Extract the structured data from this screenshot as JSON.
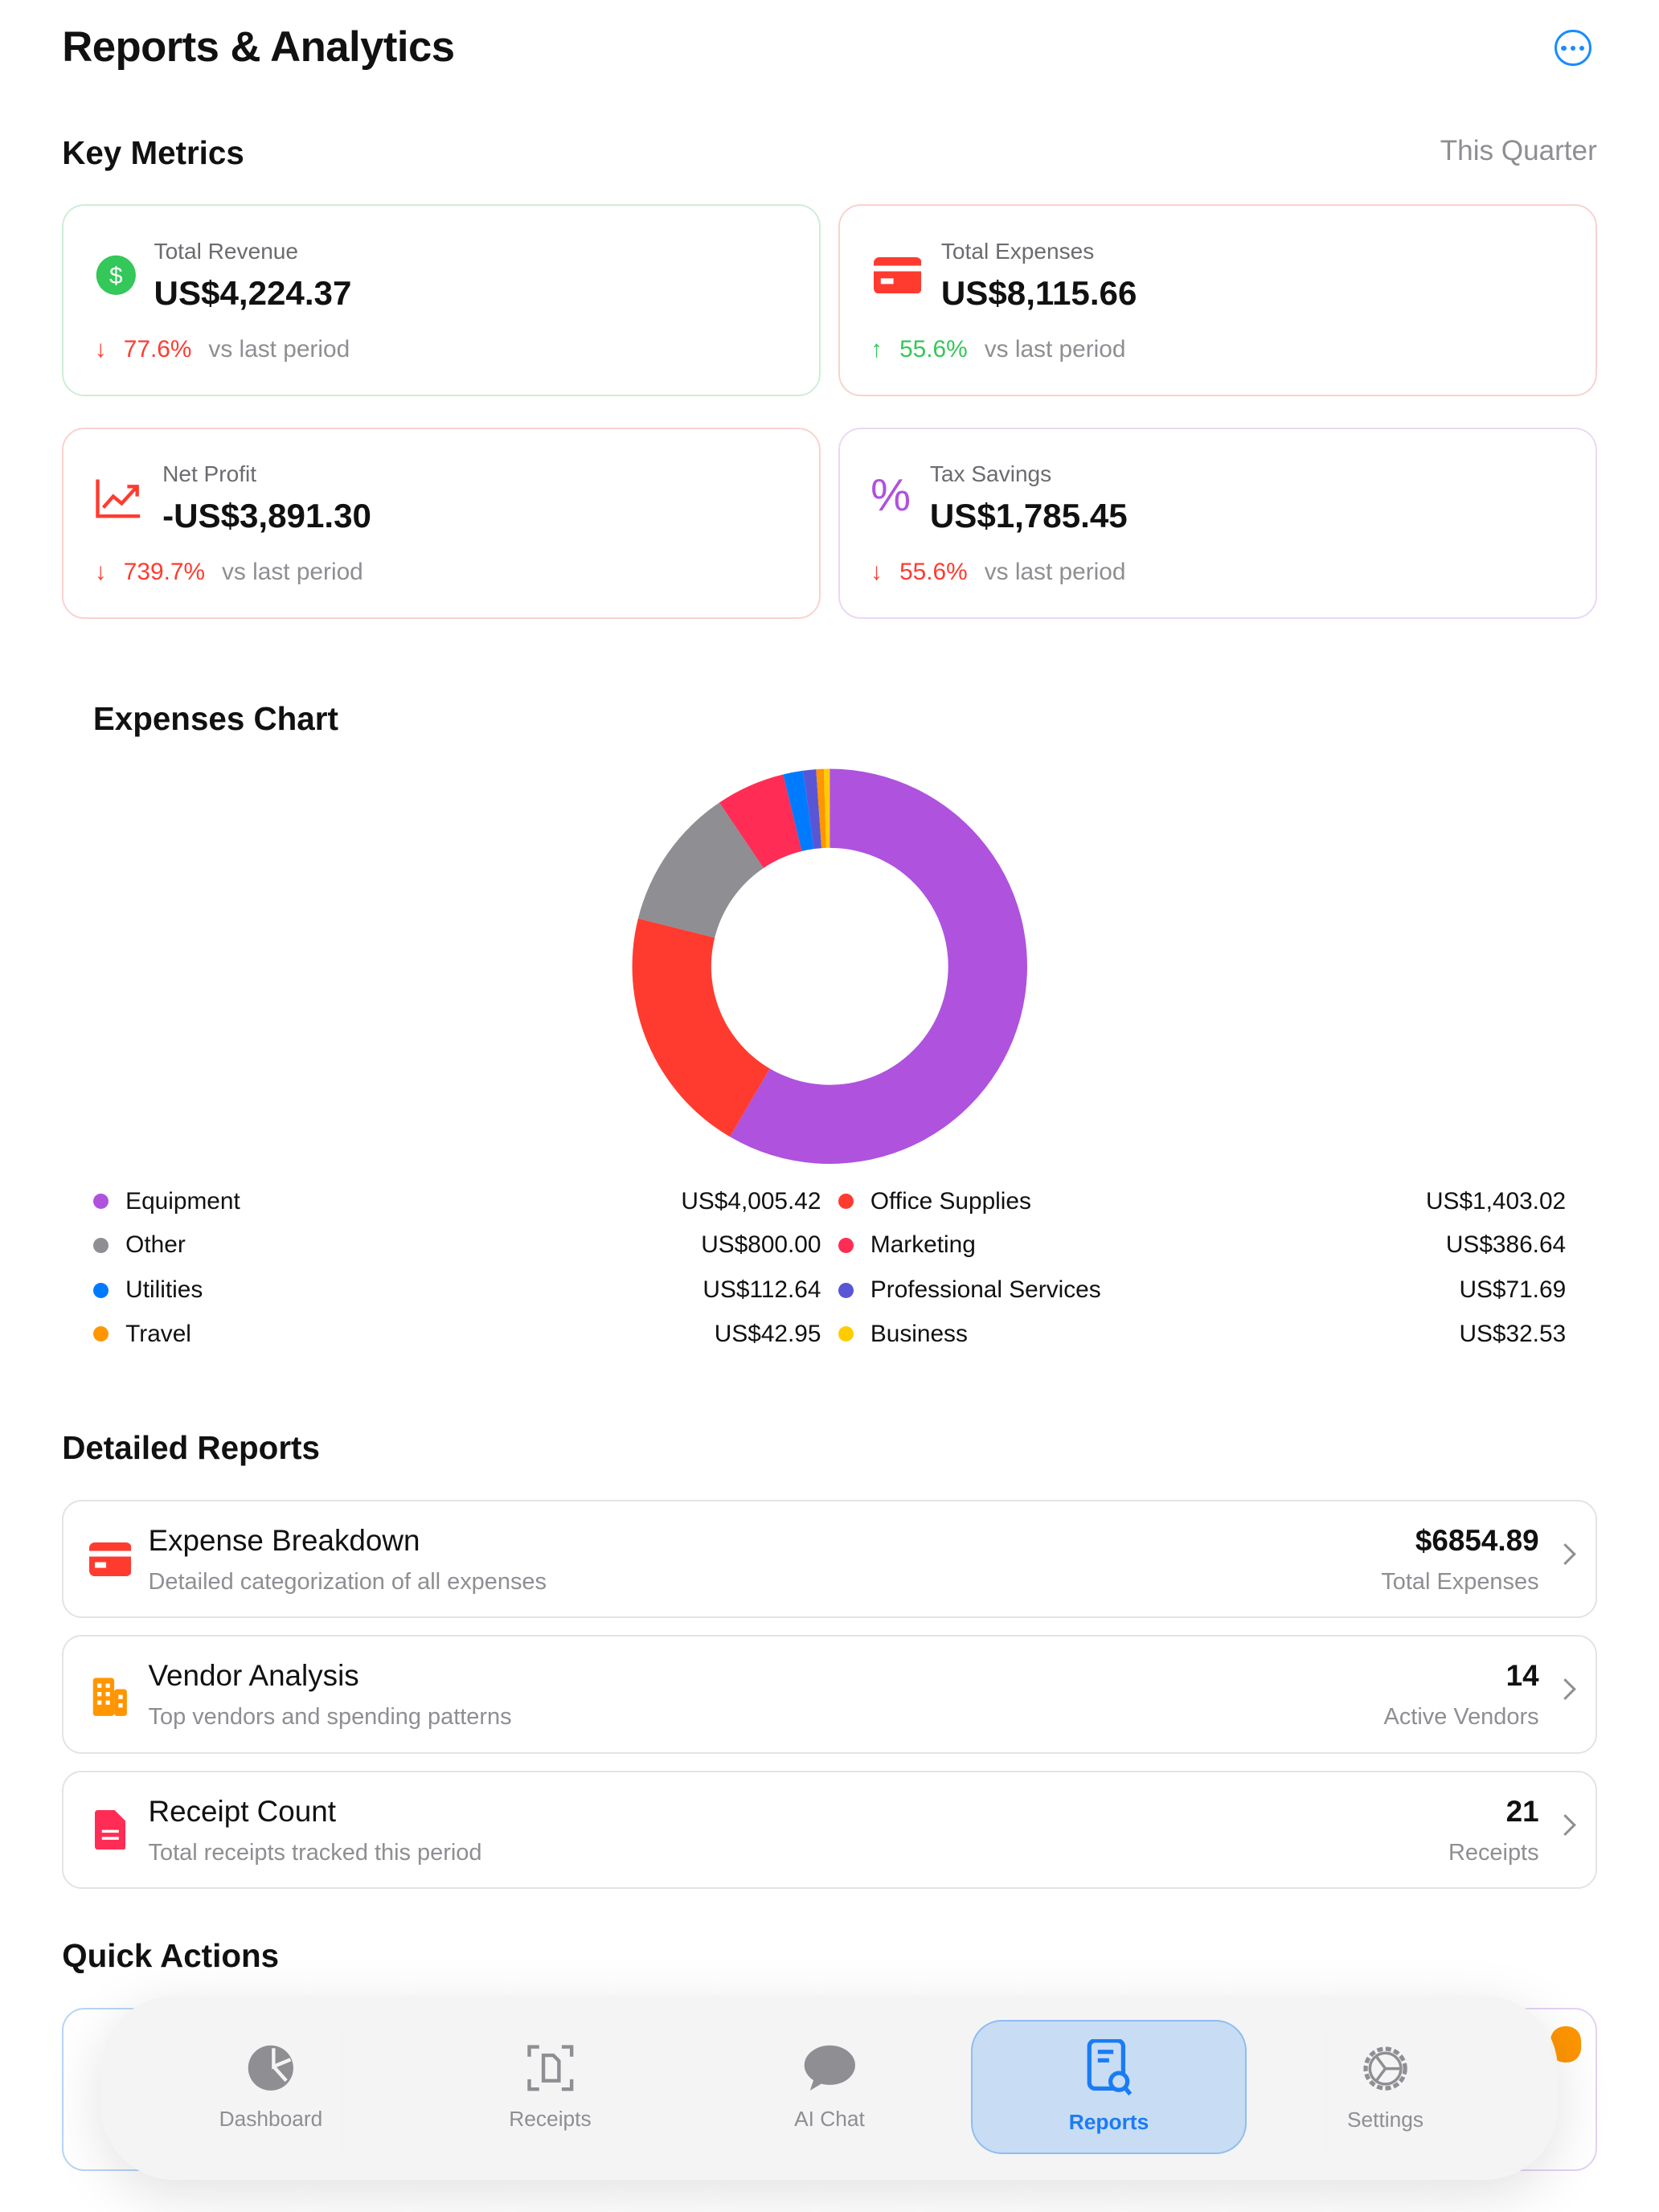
{
  "header": {
    "title": "Reports & Analytics",
    "more_icon": "ellipsis-circle-icon"
  },
  "metrics": {
    "title": "Key Metrics",
    "period": "This Quarter",
    "cards": [
      {
        "label": "Total Revenue",
        "value": "US$4,224.37",
        "change": "77.6%",
        "direction": "down",
        "vs": "vs last period",
        "icon": "dollar-circle-icon",
        "border": "#cdeed6"
      },
      {
        "label": "Total Expenses",
        "value": "US$8,115.66",
        "change": "55.6%",
        "direction": "up",
        "vs": "vs last period",
        "icon": "credit-card-icon",
        "border": "#f9d2d0"
      },
      {
        "label": "Net Profit",
        "value": "-US$3,891.30",
        "change": "739.7%",
        "direction": "down",
        "vs": "vs last period",
        "icon": "chart-line-icon",
        "border": "#f9d2d0"
      },
      {
        "label": "Tax Savings",
        "value": "US$1,785.45",
        "change": "55.6%",
        "direction": "down",
        "vs": "vs last period",
        "icon": "percent-icon",
        "border": "#ead8f5"
      }
    ]
  },
  "chart_data": {
    "type": "pie",
    "donut": true,
    "title": "Expenses Chart",
    "categories": [
      "Equipment",
      "Office Supplies",
      "Other",
      "Marketing",
      "Utilities",
      "Professional Services",
      "Travel",
      "Business"
    ],
    "values": [
      4005.42,
      1403.02,
      800.0,
      386.64,
      112.64,
      71.69,
      42.95,
      32.53
    ],
    "labels": [
      "US$4,005.42",
      "US$1,403.02",
      "US$800.00",
      "US$386.64",
      "US$112.64",
      "US$71.69",
      "US$42.95",
      "US$32.53"
    ],
    "colors": [
      "#af52de",
      "#ff3b30",
      "#8e8e93",
      "#ff2d55",
      "#007aff",
      "#5856d6",
      "#ff9500",
      "#ffcc00"
    ],
    "legend": "bottom"
  },
  "reports": {
    "title": "Detailed Reports",
    "items": [
      {
        "title": "Expense Breakdown",
        "subtitle": "Detailed categorization of all expenses",
        "value": "$6854.89",
        "value_label": "Total Expenses",
        "icon": "credit-card-icon"
      },
      {
        "title": "Vendor Analysis",
        "subtitle": "Top vendors and spending patterns",
        "value": "14",
        "value_label": "Active Vendors",
        "icon": "building-icon"
      },
      {
        "title": "Receipt Count",
        "subtitle": "Total receipts tracked this period",
        "value": "21",
        "value_label": "Receipts",
        "icon": "document-icon"
      }
    ]
  },
  "quick_actions": {
    "title": "Quick Actions"
  },
  "tabs": [
    {
      "label": "Dashboard",
      "icon": "pie-chart-icon"
    },
    {
      "label": "Receipts",
      "icon": "doc-scan-icon"
    },
    {
      "label": "AI Chat",
      "icon": "chat-bubble-icon"
    },
    {
      "label": "Reports",
      "icon": "doc-search-icon",
      "selected": true
    },
    {
      "label": "Settings",
      "icon": "gear-icon"
    }
  ],
  "colors": {
    "accent": "#1a7cf5",
    "negative": "#ff3b30",
    "positive": "#34c759"
  }
}
